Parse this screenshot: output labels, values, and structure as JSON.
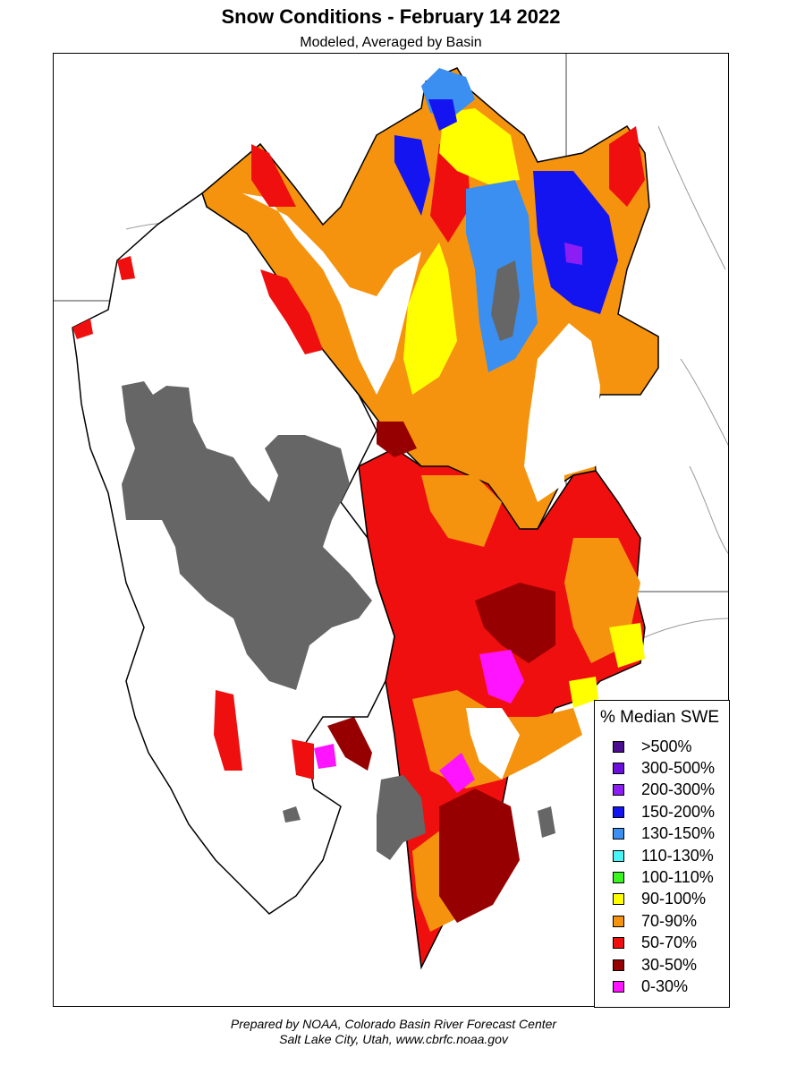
{
  "title": "Snow Conditions - February 14 2022",
  "subtitle": "Modeled, Averaged by Basin",
  "legend": {
    "title": "% Median SWE",
    "items": [
      {
        "label": ">500%",
        "color": "#4b0e8f"
      },
      {
        "label": "300-500%",
        "color": "#6a0fdc"
      },
      {
        "label": "200-300%",
        "color": "#8c1ef5"
      },
      {
        "label": "150-200%",
        "color": "#1414f0"
      },
      {
        "label": "130-150%",
        "color": "#3a8ff0"
      },
      {
        "label": "110-130%",
        "color": "#48f5f5"
      },
      {
        "label": "100-110%",
        "color": "#3cf51e"
      },
      {
        "label": "90-100%",
        "color": "#ffff00"
      },
      {
        "label": "70-90%",
        "color": "#f5930f"
      },
      {
        "label": "50-70%",
        "color": "#f00f0f"
      },
      {
        "label": "30-50%",
        "color": "#960000"
      },
      {
        "label": "0-30%",
        "color": "#ff14ff"
      }
    ]
  },
  "map_colors": {
    "lake": "#666666",
    "no_data": "#ffffff",
    "basin_border": "#000000",
    "state_line": "#444444",
    "river": "#9a9a9a"
  },
  "credit_line1": "Prepared by NOAA, Colorado Basin River Forecast Center",
  "credit_line2": "Salt Lake City, Utah, www.cbrfc.noaa.gov"
}
